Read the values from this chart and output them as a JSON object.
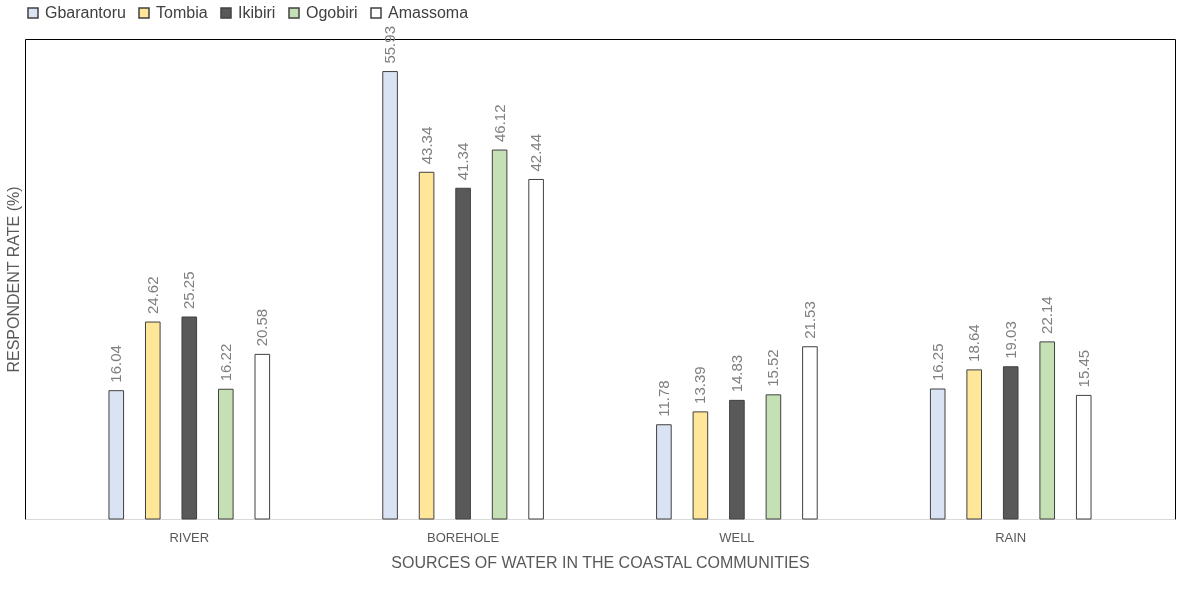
{
  "chart_data": {
    "type": "bar",
    "xlabel": "SOURCES OF WATER IN THE COASTAL COMMUNITIES",
    "ylabel": "RESPONDENT RATE (%)",
    "categories": [
      "RIVER",
      "BOREHOLE",
      "WELL",
      "RAIN"
    ],
    "series": [
      {
        "name": "Gbarantoru",
        "color": "#dae3f3",
        "values": [
          16.04,
          55.93,
          11.78,
          16.25
        ]
      },
      {
        "name": "Tombia",
        "color": "#ffe699",
        "values": [
          24.62,
          43.34,
          13.39,
          18.64
        ]
      },
      {
        "name": "Ikibiri",
        "color": "#595959",
        "values": [
          25.25,
          41.34,
          14.83,
          19.03
        ]
      },
      {
        "name": "Ogobiri",
        "color": "#c5e0b4",
        "values": [
          16.22,
          46.12,
          15.52,
          22.14
        ]
      },
      {
        "name": "Amassoma",
        "color": "#ffffff",
        "values": [
          20.58,
          42.44,
          21.53,
          15.45
        ]
      }
    ],
    "data_labels": true,
    "legend": "top",
    "tick_labels": "x",
    "grid": false
  }
}
